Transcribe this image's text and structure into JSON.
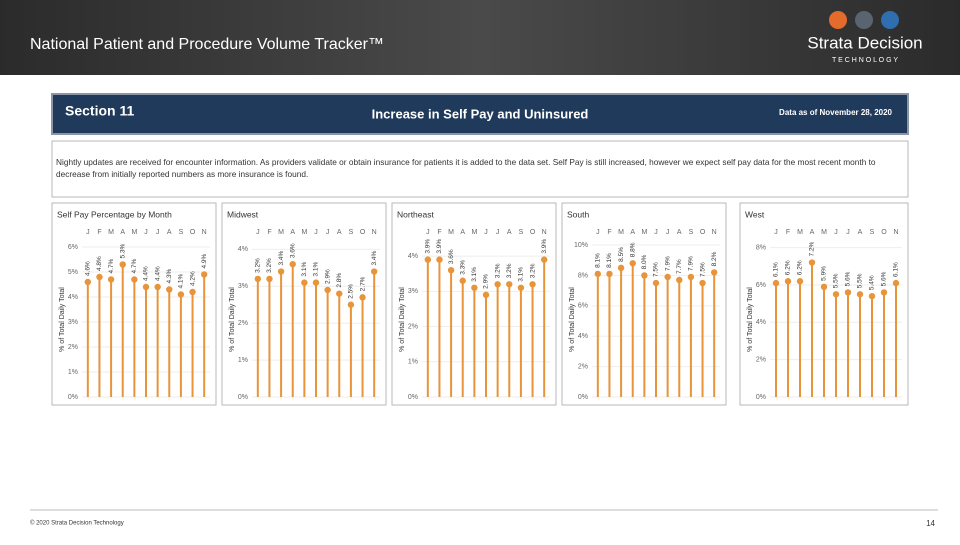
{
  "header": {
    "title": "National Patient and Procedure Volume Tracker™",
    "logo": "Strata Decision",
    "logo_sub": "T E C H N O L O G Y"
  },
  "banner": {
    "section": "Section 11",
    "heading": "Increase in Self Pay and Uninsured",
    "date": "Data as of November 28, 2020"
  },
  "note": "Nightly updates are received for encounter information. As providers validate or obtain insurance for patients it is added to the data set. Self Pay is still increased, however we expect self pay data for the most recent month to decrease from initially reported numbers as more insurance is found.",
  "footer": {
    "copyright": "© 2020 Strata Decision Technology",
    "page": "14"
  },
  "chart_data": [
    {
      "type": "lollipop",
      "title": "Self Pay Percentage by Month",
      "y_label": "% of Total Daily Total",
      "color": "#e8943a",
      "categories": [
        "J",
        "F",
        "M",
        "A",
        "M",
        "J",
        "J",
        "A",
        "S",
        "O",
        "N"
      ],
      "values": [
        4.6,
        4.8,
        4.7,
        5.3,
        4.7,
        4.4,
        4.4,
        4.3,
        4.1,
        4.2,
        4.9
      ],
      "value_labels": [
        "4.6%",
        "4.8%",
        "4.7%",
        "5.3%",
        "4.7%",
        "4.4%",
        "4.4%",
        "4.3%",
        "4.1%",
        "4.2%",
        "4.9%"
      ],
      "ylim": [
        0,
        6.2
      ],
      "yticks": [
        {
          "value": 0,
          "label": "0%"
        },
        {
          "value": 1,
          "label": "1%"
        },
        {
          "value": 2,
          "label": "2%"
        },
        {
          "value": 3,
          "label": "3%"
        },
        {
          "value": 4,
          "label": "4%"
        },
        {
          "value": 5,
          "label": "5%"
        },
        {
          "value": 6,
          "label": "6%"
        }
      ]
    },
    {
      "type": "lollipop",
      "title": "Midwest",
      "y_label": "% of Total Daily Total",
      "color": "#e8943a",
      "categories": [
        "J",
        "F",
        "M",
        "A",
        "M",
        "J",
        "J",
        "A",
        "S",
        "O",
        "N"
      ],
      "values": [
        3.2,
        3.2,
        3.4,
        3.6,
        3.1,
        3.1,
        2.9,
        2.8,
        2.5,
        2.7,
        3.4
      ],
      "value_labels": [
        "3.2%",
        "3.2%",
        "3.4%",
        "3.6%",
        "3.1%",
        "3.1%",
        "2.9%",
        "2.8%",
        "2.5%",
        "2.7%",
        "3.4%"
      ],
      "ylim": [
        0,
        4.2
      ],
      "yticks": [
        {
          "value": 0,
          "label": "0%"
        },
        {
          "value": 1,
          "label": "1%"
        },
        {
          "value": 2,
          "label": "2%"
        },
        {
          "value": 3,
          "label": "3%"
        },
        {
          "value": 4,
          "label": "4%"
        }
      ]
    },
    {
      "type": "lollipop",
      "title": "Northeast",
      "y_label": "% of Total Daily Total",
      "color": "#e8943a",
      "categories": [
        "J",
        "F",
        "M",
        "A",
        "M",
        "J",
        "J",
        "A",
        "S",
        "O",
        "N"
      ],
      "values": [
        3.9,
        3.9,
        3.6,
        3.3,
        3.1,
        2.9,
        3.2,
        3.2,
        3.1,
        3.2,
        3.9
      ],
      "value_labels": [
        "3.9%",
        "3.9%",
        "3.6%",
        "3.3%",
        "3.1%",
        "2.9%",
        "3.2%",
        "3.2%",
        "3.1%",
        "3.2%",
        "3.9%"
      ],
      "ylim": [
        0,
        4.4
      ],
      "yticks": [
        {
          "value": 0,
          "label": "0%"
        },
        {
          "value": 1,
          "label": "1%"
        },
        {
          "value": 2,
          "label": "2%"
        },
        {
          "value": 3,
          "label": "3%"
        },
        {
          "value": 4,
          "label": "4%"
        }
      ]
    },
    {
      "type": "lollipop",
      "title": "South",
      "y_label": "% of Total Daily Total",
      "color": "#e8943a",
      "categories": [
        "J",
        "F",
        "M",
        "A",
        "M",
        "J",
        "J",
        "A",
        "S",
        "O",
        "N"
      ],
      "values": [
        8.1,
        8.1,
        8.5,
        8.8,
        8.0,
        7.5,
        7.9,
        7.7,
        7.9,
        7.5,
        8.2
      ],
      "value_labels": [
        "8.1%",
        "8.1%",
        "8.5%",
        "8.8%",
        "8.0%",
        "7.5%",
        "7.9%",
        "7.7%",
        "7.9%",
        "7.5%",
        "8.2%"
      ],
      "ylim": [
        0,
        10.2
      ],
      "yticks": [
        {
          "value": 0,
          "label": "0%"
        },
        {
          "value": 2,
          "label": "2%"
        },
        {
          "value": 4,
          "label": "4%"
        },
        {
          "value": 6,
          "label": "6%"
        },
        {
          "value": 8,
          "label": "8%"
        },
        {
          "value": 10,
          "label": "10%"
        }
      ]
    },
    {
      "type": "lollipop",
      "title": "West",
      "y_label": "% of Total Daily Total",
      "color": "#e8943a",
      "categories": [
        "J",
        "F",
        "M",
        "A",
        "M",
        "J",
        "J",
        "A",
        "S",
        "O",
        "N"
      ],
      "values": [
        6.1,
        6.2,
        6.2,
        7.2,
        5.9,
        5.5,
        5.6,
        5.5,
        5.4,
        5.6,
        6.1
      ],
      "value_labels": [
        "6.1%",
        "6.2%",
        "6.2%",
        "7.2%",
        "5.9%",
        "5.5%",
        "5.6%",
        "5.5%",
        "5.4%",
        "5.6%",
        "6.1%"
      ],
      "ylim": [
        0,
        8.3
      ],
      "yticks": [
        {
          "value": 0,
          "label": "0%"
        },
        {
          "value": 2,
          "label": "2%"
        },
        {
          "value": 4,
          "label": "4%"
        },
        {
          "value": 6,
          "label": "6%"
        },
        {
          "value": 8,
          "label": "8%"
        }
      ]
    }
  ]
}
